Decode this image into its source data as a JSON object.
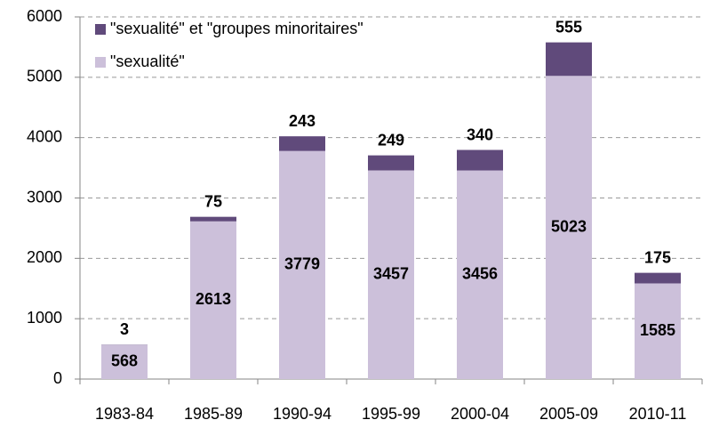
{
  "chart_data": {
    "type": "stacked_bar",
    "categories": [
      "1983-84",
      "1985-89",
      "1990-94",
      "1995-99",
      "2000-04",
      "2005-09",
      "2010-11"
    ],
    "series": [
      {
        "name": "\"sexualité\"",
        "color": "#ccc0da",
        "values": [
          568,
          2613,
          3779,
          3457,
          3456,
          5023,
          1585
        ]
      },
      {
        "name": "\"sexualité\" et \"groupes minoritaires\"",
        "color": "#604a7b",
        "values": [
          3,
          75,
          243,
          249,
          340,
          555,
          175
        ]
      }
    ],
    "ylim": [
      0,
      6000
    ],
    "yticks": [
      0,
      1000,
      2000,
      3000,
      4000,
      5000,
      6000
    ],
    "grid": true,
    "legend": "top-left"
  }
}
